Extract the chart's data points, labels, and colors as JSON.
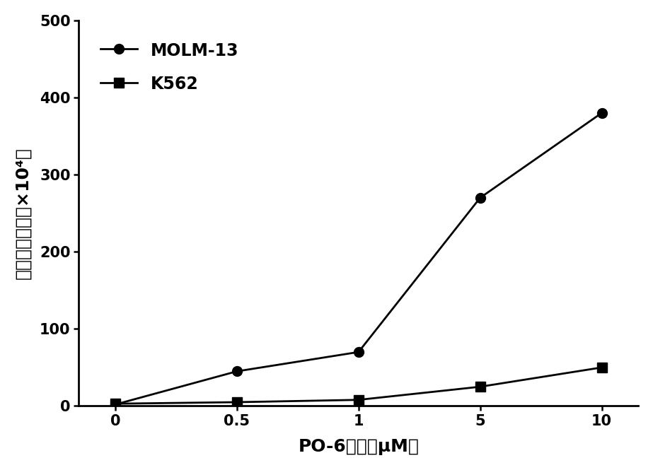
{
  "x_positions": [
    0,
    1,
    2,
    3,
    4
  ],
  "x_tick_labels": [
    "0",
    "0.5",
    "1",
    "5",
    "10"
  ],
  "molm13_y": [
    2,
    45,
    70,
    270,
    380
  ],
  "k562_y": [
    3,
    5,
    8,
    25,
    50
  ],
  "ylim": [
    0,
    500
  ],
  "xlim": [
    -0.3,
    4.3
  ],
  "y_ticks": [
    0,
    100,
    200,
    300,
    400,
    500
  ],
  "xlabel": "PO-6浓度（μM）",
  "ylabel_main": "平均荧光强度",
  "ylabel_unit": "（×10⁴）",
  "legend_labels": [
    "MOLM-13",
    "K562"
  ],
  "line_color": "#000000",
  "marker_molm13": "o",
  "marker_k562": "s",
  "markersize": 10,
  "linewidth": 2.0,
  "label_fontsize": 18,
  "tick_fontsize": 15,
  "legend_fontsize": 17,
  "background_color": "#ffffff"
}
